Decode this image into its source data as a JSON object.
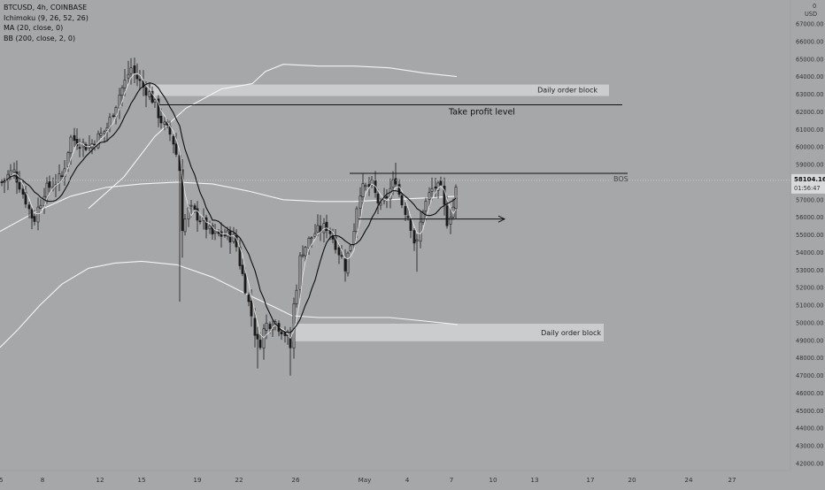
{
  "symbol": {
    "title": "BTCUSD, 4h, COINBASE"
  },
  "indicators": [
    {
      "label": "Ichimoku (9, 26, 52, 26)"
    },
    {
      "label": "MA (20, close, 0)"
    },
    {
      "label": "BB (200, close, 2, 0)"
    }
  ],
  "colors": {
    "background": "#a6a7a9",
    "candle": "#1a1a1a",
    "ma": "#0d0d0d",
    "band": "#f4f4f4",
    "zone": "#cfd0d2",
    "line": "#111111"
  },
  "price_axis": {
    "currency": "USD",
    "partial_top_label": "0",
    "ticks": [
      "67000.00",
      "66000.00",
      "65000.00",
      "64000.00",
      "63000.00",
      "62000.00",
      "61000.00",
      "60000.00",
      "59000.00",
      "58000.00",
      "57000.00",
      "56000.00",
      "55000.00",
      "54000.00",
      "53000.00",
      "52000.00",
      "51000.00",
      "50000.00",
      "49000.00",
      "48000.00",
      "47000.00",
      "46000.00",
      "45000.00",
      "44000.00",
      "43000.00",
      "42000.00"
    ],
    "last_price": "58104.16",
    "countdown": "01:56:47"
  },
  "time_axis": {
    "ticks": [
      "8",
      "12",
      "15",
      "19",
      "22",
      "26",
      "May",
      "4",
      "7",
      "10",
      "13",
      "17",
      "20",
      "24",
      "27"
    ],
    "partial_left_label": "5"
  },
  "annotations": {
    "order_block_top": "Daily order block",
    "take_profit": "Take profit level",
    "bos": "BOS",
    "order_block_bottom": "Daily order block"
  },
  "chart_data": {
    "type": "candlestick",
    "symbol": "BTCUSD",
    "interval": "4h",
    "exchange": "COINBASE",
    "ylim": [
      41600,
      68000
    ],
    "y_unit": "USD",
    "x_ticks": [
      "8",
      "12",
      "15",
      "19",
      "22",
      "26",
      "May",
      "4",
      "7",
      "10",
      "13",
      "17",
      "20",
      "24",
      "27"
    ],
    "series": [
      {
        "name": "MA (20, close, 0)",
        "type": "line"
      },
      {
        "name": "BB (200, close, 2, 0)",
        "type": "band"
      }
    ],
    "levels": [
      {
        "label": "Take profit level",
        "price": 62400
      },
      {
        "label": "BOS",
        "price": 58500
      },
      {
        "label": "Daily order block",
        "price_range": [
          62900,
          63550
        ]
      },
      {
        "label": "Daily order block",
        "price_range": [
          48950,
          49950
        ]
      }
    ],
    "last_price": 58104.16,
    "grid": false
  }
}
